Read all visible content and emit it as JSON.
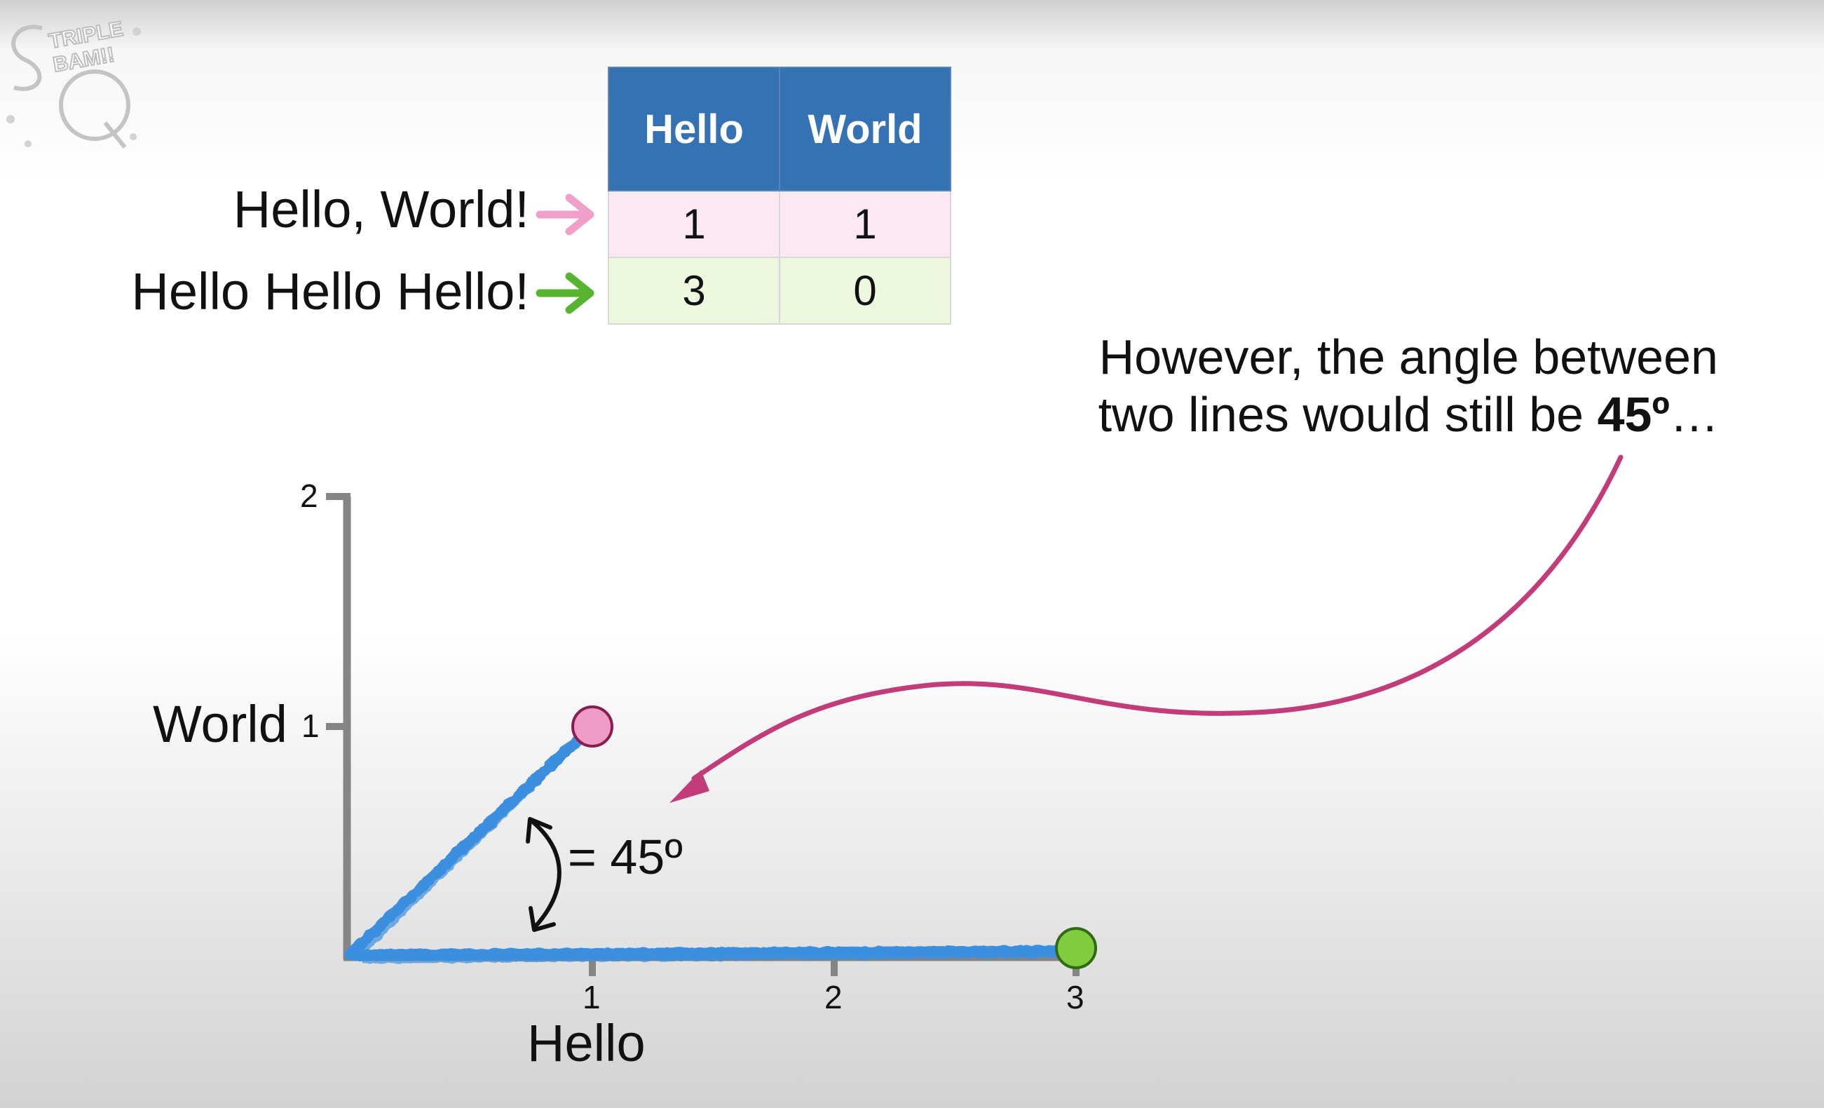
{
  "logo": {
    "text": "TRIPLE BAM!!",
    "monogram": "SQ"
  },
  "table": {
    "headers": [
      "Hello",
      "World"
    ],
    "rows": [
      {
        "label": "Hello, World!",
        "values": [
          "1",
          "1"
        ],
        "arrow_color": "#ef9fc8",
        "fill": "#fbe8f2"
      },
      {
        "label": "Hello Hello Hello!",
        "values": [
          "3",
          "0"
        ],
        "arrow_color": "#56b431",
        "fill": "#eef8de"
      }
    ],
    "header_color": "#3572b4"
  },
  "callout": {
    "line1": "However, the angle between",
    "line2_prefix": "two lines would still be ",
    "line2_bold": "45º",
    "line2_suffix": "…",
    "arrow_color": "#c23c7a"
  },
  "plot": {
    "x_title": "Hello",
    "y_title": "World",
    "x_ticks": [
      "1",
      "2",
      "3"
    ],
    "y_ticks": [
      "1",
      "2"
    ],
    "angle_label": "= 45º",
    "line_color": "#3b8fde",
    "points": [
      {
        "name": "Hello, World!",
        "x": 1,
        "y": 1,
        "color": "#ee9cc6"
      },
      {
        "name": "Hello Hello Hello!",
        "x": 3,
        "y": 0,
        "color": "#7fcc3e"
      }
    ]
  }
}
